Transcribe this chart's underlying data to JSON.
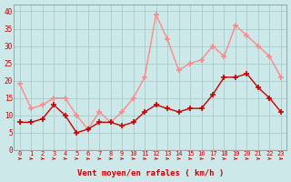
{
  "x": [
    0,
    1,
    2,
    3,
    4,
    5,
    6,
    7,
    8,
    9,
    10,
    11,
    12,
    13,
    14,
    15,
    16,
    17,
    18,
    19,
    20,
    21,
    22,
    23
  ],
  "vent_moyen": [
    8,
    8,
    9,
    13,
    10,
    5,
    6,
    8,
    8,
    7,
    8,
    11,
    13,
    12,
    11,
    12,
    12,
    16,
    21,
    21,
    22,
    18,
    15,
    11
  ],
  "rafales": [
    19,
    12,
    13,
    15,
    15,
    10,
    6,
    11,
    8,
    11,
    15,
    21,
    39,
    32,
    23,
    25,
    26,
    30,
    27,
    36,
    33,
    30,
    27,
    21
  ],
  "bg_color": "#cde8e8",
  "grid_color": "#aacccc",
  "color_moyen": "#cc0000",
  "color_rafales": "#ff8888",
  "xlabel": "Vent moyen/en rafales ( km/h )",
  "xlabel_color": "#cc0000",
  "ylabel_ticks": [
    0,
    5,
    10,
    15,
    20,
    25,
    30,
    35,
    40
  ],
  "ylim": [
    0,
    42
  ],
  "xlim": [
    -0.5,
    23.5
  ],
  "marker": "+",
  "markersize": 4,
  "linewidth": 1.0
}
